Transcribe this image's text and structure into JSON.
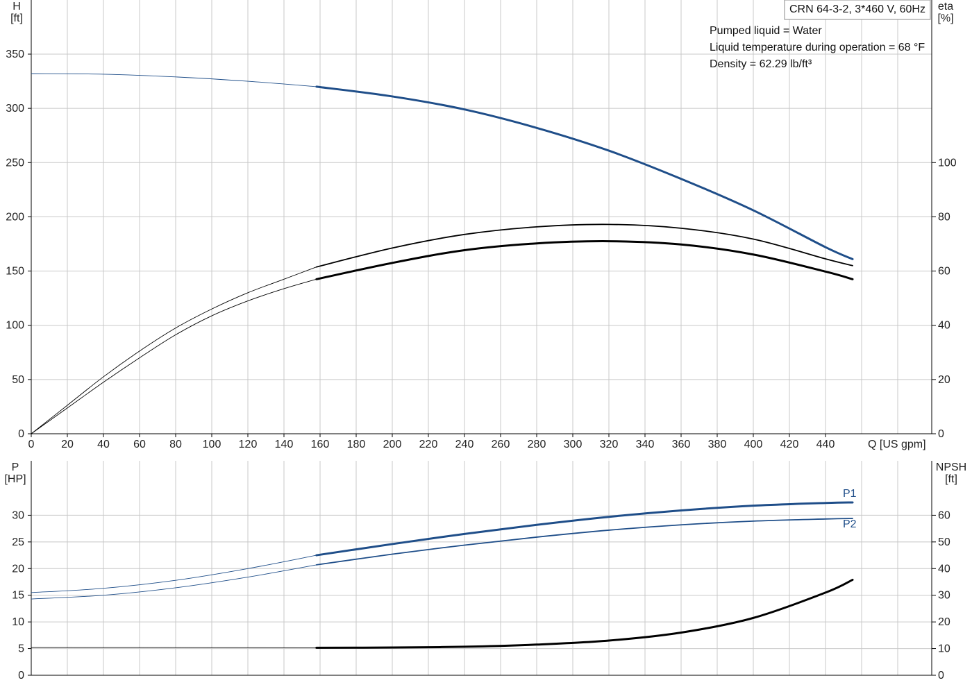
{
  "chart_data": [
    {
      "type": "line",
      "name": "head-efficiency-panel",
      "title_box": "CRN 64-3-2, 3*460 V, 60Hz",
      "info_lines": [
        "Pumped liquid = Water",
        "Liquid temperature during operation = 68 °F",
        "Density = 62.29 lb/ft³"
      ],
      "xlabel": "Q [US gpm]",
      "xlim": [
        0,
        500
      ],
      "xticks": [
        0,
        20,
        40,
        60,
        80,
        100,
        120,
        140,
        160,
        180,
        200,
        220,
        240,
        260,
        280,
        300,
        320,
        340,
        360,
        380,
        400,
        420,
        440
      ],
      "y_left": {
        "label_top": "H",
        "label_unit": "[ft]",
        "lim": [
          0,
          350
        ],
        "ticks": [
          0,
          50,
          100,
          150,
          200,
          250,
          300,
          350
        ]
      },
      "y_right": {
        "label_top": "eta",
        "label_unit": "[%]",
        "lim": [
          0,
          140
        ],
        "ticks": [
          0,
          20,
          40,
          60,
          80,
          100
        ]
      },
      "grid": true,
      "series": [
        {
          "axis": "left",
          "color": "#1f4e89",
          "op_start": 158,
          "points": [
            [
              0,
              332
            ],
            [
              40,
              331.5
            ],
            [
              80,
              329
            ],
            [
              120,
              325
            ],
            [
              158,
              320
            ],
            [
              200,
              311
            ],
            [
              240,
              299
            ],
            [
              280,
              282
            ],
            [
              320,
              261
            ],
            [
              360,
              235
            ],
            [
              400,
              206
            ],
            [
              440,
              172
            ],
            [
              455,
              161
            ]
          ]
        },
        {
          "axis": "right",
          "color": "#000000",
          "op_start": 158,
          "points": [
            [
              0,
              0
            ],
            [
              20,
              10.5
            ],
            [
              40,
              21
            ],
            [
              60,
              30.5
            ],
            [
              80,
              39
            ],
            [
              100,
              46
            ],
            [
              120,
              52
            ],
            [
              140,
              57
            ],
            [
              158,
              61.5
            ],
            [
              200,
              68.5
            ],
            [
              240,
              73.5
            ],
            [
              280,
              76.3
            ],
            [
              320,
              77.2
            ],
            [
              360,
              75.8
            ],
            [
              400,
              71.8
            ],
            [
              440,
              64.5
            ],
            [
              455,
              62
            ]
          ]
        },
        {
          "axis": "right",
          "color": "#000000",
          "op_start": 158,
          "points": [
            [
              0,
              0
            ],
            [
              20,
              9.5
            ],
            [
              40,
              19
            ],
            [
              60,
              28
            ],
            [
              80,
              36.5
            ],
            [
              100,
              43.5
            ],
            [
              120,
              49
            ],
            [
              140,
              53.5
            ],
            [
              158,
              57
            ],
            [
              200,
              63
            ],
            [
              240,
              67.7
            ],
            [
              280,
              70.2
            ],
            [
              320,
              71
            ],
            [
              360,
              69.8
            ],
            [
              400,
              66.1
            ],
            [
              440,
              59.8
            ],
            [
              455,
              57
            ]
          ]
        }
      ]
    },
    {
      "type": "line",
      "name": "power-npsh-panel",
      "xlim": [
        0,
        500
      ],
      "y_left": {
        "label_top": "P",
        "label_unit": "[HP]",
        "lim": [
          0,
          35
        ],
        "ticks": [
          0,
          5,
          10,
          15,
          20,
          25,
          30
        ]
      },
      "y_right": {
        "label_top": "NPSH",
        "label_unit": "[ft]",
        "lim": [
          0,
          70
        ],
        "ticks": [
          0,
          10,
          20,
          30,
          40,
          50,
          60
        ]
      },
      "grid": true,
      "series": [
        {
          "name": "P1",
          "axis": "left",
          "color": "#1f4e89",
          "op_start": 158,
          "points": [
            [
              0,
              15.5
            ],
            [
              40,
              16.3
            ],
            [
              80,
              17.8
            ],
            [
              120,
              20
            ],
            [
              158,
              22.5
            ],
            [
              200,
              24.6
            ],
            [
              240,
              26.5
            ],
            [
              280,
              28.2
            ],
            [
              320,
              29.7
            ],
            [
              360,
              30.9
            ],
            [
              400,
              31.8
            ],
            [
              440,
              32.3
            ],
            [
              455,
              32.4
            ]
          ]
        },
        {
          "name": "P2",
          "axis": "left",
          "color": "#1f4e89",
          "op_start": 158,
          "points": [
            [
              0,
              14.3
            ],
            [
              40,
              15
            ],
            [
              80,
              16.4
            ],
            [
              120,
              18.4
            ],
            [
              158,
              20.7
            ],
            [
              200,
              22.7
            ],
            [
              240,
              24.4
            ],
            [
              280,
              25.9
            ],
            [
              320,
              27.2
            ],
            [
              360,
              28.2
            ],
            [
              400,
              28.9
            ],
            [
              440,
              29.3
            ],
            [
              455,
              29.4
            ]
          ]
        },
        {
          "axis": "right",
          "color": "#000000",
          "op_start": 158,
          "points": [
            [
              0,
              10.5
            ],
            [
              100,
              10.4
            ],
            [
              158,
              10.3
            ],
            [
              200,
              10.4
            ],
            [
              240,
              10.7
            ],
            [
              280,
              11.5
            ],
            [
              320,
              13
            ],
            [
              360,
              16
            ],
            [
              400,
              21.5
            ],
            [
              440,
              31
            ],
            [
              455,
              35.8
            ]
          ]
        }
      ]
    }
  ]
}
